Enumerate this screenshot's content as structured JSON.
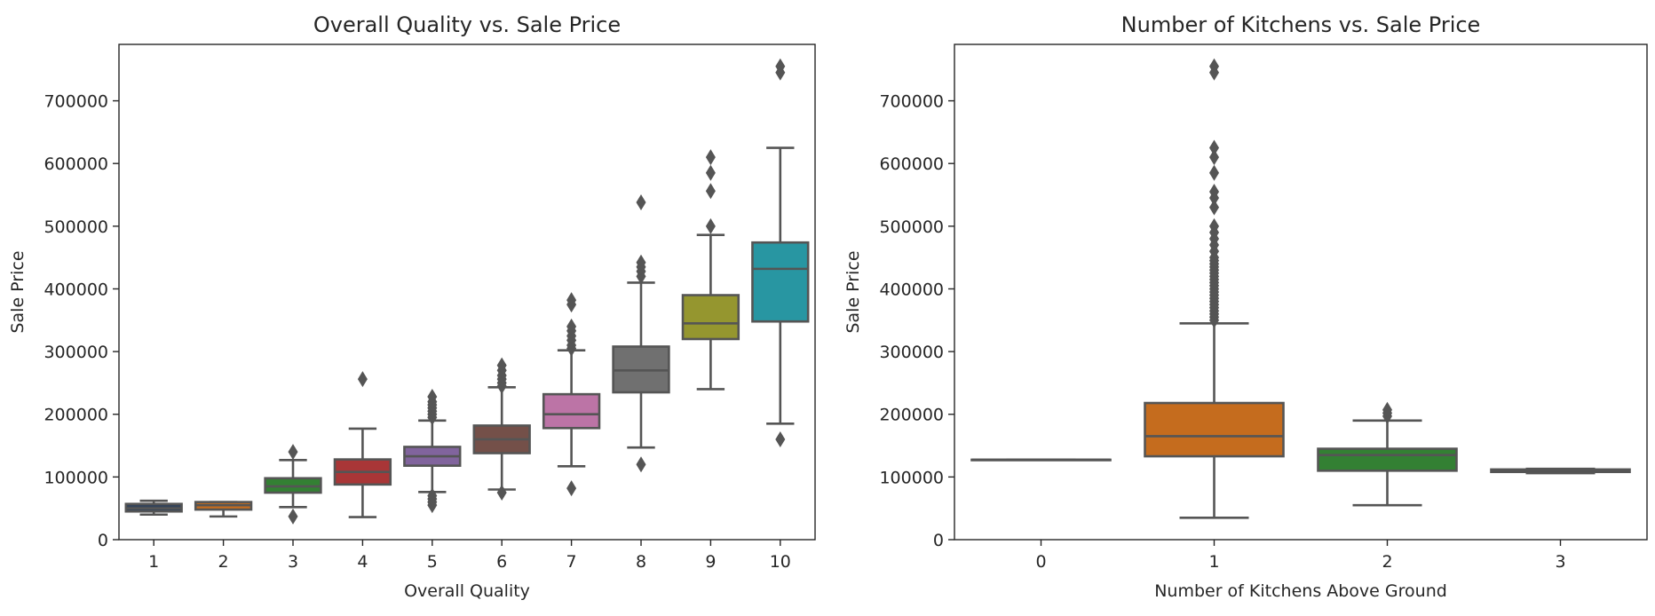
{
  "chart_data": [
    {
      "type": "box",
      "title": "Overall Quality vs. Sale Price",
      "xlabel": "Overall Quality",
      "ylabel": "Sale Price",
      "ylim": [
        0,
        790000
      ],
      "yticks": [
        0,
        100000,
        200000,
        300000,
        400000,
        500000,
        600000,
        700000
      ],
      "yticklabels": [
        "0",
        "100000",
        "200000",
        "300000",
        "400000",
        "500000",
        "600000",
        "700000"
      ],
      "grid": false,
      "categories": [
        "1",
        "2",
        "3",
        "4",
        "5",
        "6",
        "7",
        "8",
        "9",
        "10"
      ],
      "boxes": [
        {
          "category": "1",
          "color": "#3b4d66",
          "whislo": 40000,
          "q1": 45000,
          "med": 50000,
          "q3": 57000,
          "whishi": 62000,
          "fliers": []
        },
        {
          "category": "2",
          "color": "#e07b22",
          "whislo": 37000,
          "q1": 48000,
          "med": 55000,
          "q3": 60000,
          "whishi": 60000,
          "fliers": []
        },
        {
          "category": "3",
          "color": "#3a923a",
          "whislo": 52000,
          "q1": 75000,
          "med": 85000,
          "q3": 98000,
          "whishi": 127000,
          "fliers": [
            37000,
            140000
          ]
        },
        {
          "category": "4",
          "color": "#c03d3e",
          "whislo": 36000,
          "q1": 88000,
          "med": 108000,
          "q3": 128000,
          "whishi": 177000,
          "fliers": [
            256000
          ]
        },
        {
          "category": "5",
          "color": "#9372b2",
          "whislo": 76000,
          "q1": 118000,
          "med": 133000,
          "q3": 148000,
          "whishi": 190000,
          "fliers": [
            55000,
            60000,
            65000,
            70000,
            195000,
            200000,
            205000,
            210000,
            215000,
            220000,
            228000
          ]
        },
        {
          "category": "6",
          "color": "#845b53",
          "whislo": 80000,
          "q1": 138000,
          "med": 160000,
          "q3": 182000,
          "whishi": 243000,
          "fliers": [
            75000,
            245000,
            250000,
            256000,
            262000,
            270000,
            278000
          ]
        },
        {
          "category": "7",
          "color": "#d684bd",
          "whislo": 117000,
          "q1": 178000,
          "med": 200000,
          "q3": 232000,
          "whishi": 302000,
          "fliers": [
            82000,
            305000,
            310000,
            318000,
            325000,
            333000,
            340000,
            375000,
            382000
          ]
        },
        {
          "category": "8",
          "color": "#7f7f7f",
          "whislo": 147000,
          "q1": 235000,
          "med": 270000,
          "q3": 308000,
          "whishi": 410000,
          "fliers": [
            120000,
            420000,
            428000,
            435000,
            442000,
            538000
          ]
        },
        {
          "category": "9",
          "color": "#a9aa35",
          "whislo": 240000,
          "q1": 320000,
          "med": 345000,
          "q3": 390000,
          "whishi": 486000,
          "fliers": [
            500000,
            556000,
            585000,
            610000
          ]
        },
        {
          "category": "10",
          "color": "#2eabb8",
          "whislo": 185000,
          "q1": 348000,
          "med": 432000,
          "q3": 474000,
          "whishi": 625000,
          "fliers": [
            160000,
            745000,
            755000
          ]
        }
      ]
    },
    {
      "type": "box",
      "title": "Number of Kitchens vs. Sale Price",
      "xlabel": "Number of Kitchens Above Ground",
      "ylabel": "Sale Price",
      "ylim": [
        0,
        790000
      ],
      "yticks": [
        0,
        100000,
        200000,
        300000,
        400000,
        500000,
        600000,
        700000
      ],
      "yticklabels": [
        "0",
        "100000",
        "200000",
        "300000",
        "400000",
        "500000",
        "600000",
        "700000"
      ],
      "grid": false,
      "categories": [
        "0",
        "1",
        "2",
        "3"
      ],
      "boxes": [
        {
          "category": "0",
          "color": "#3b4d66",
          "whislo": 127500,
          "q1": 127500,
          "med": 127500,
          "q3": 127500,
          "whishi": 127500,
          "fliers": []
        },
        {
          "category": "1",
          "color": "#e07b22",
          "whislo": 35000,
          "q1": 133000,
          "med": 165000,
          "q3": 218000,
          "whishi": 345000,
          "fliers": [
            350000,
            355000,
            360000,
            365000,
            370000,
            375000,
            380000,
            385000,
            390000,
            395000,
            400000,
            405000,
            410000,
            415000,
            420000,
            425000,
            430000,
            435000,
            440000,
            445000,
            450000,
            460000,
            470000,
            480000,
            490000,
            500000,
            530000,
            545000,
            555000,
            585000,
            610000,
            625000,
            745000,
            755000
          ]
        },
        {
          "category": "2",
          "color": "#3a923a",
          "whislo": 55000,
          "q1": 110000,
          "med": 135000,
          "q3": 145000,
          "whishi": 190000,
          "fliers": [
            197000,
            202000,
            207000
          ]
        },
        {
          "category": "3",
          "color": "#c03d3e",
          "whislo": 106000,
          "q1": 108000,
          "med": 110000,
          "q3": 112000,
          "whishi": 113000,
          "fliers": []
        }
      ]
    }
  ]
}
